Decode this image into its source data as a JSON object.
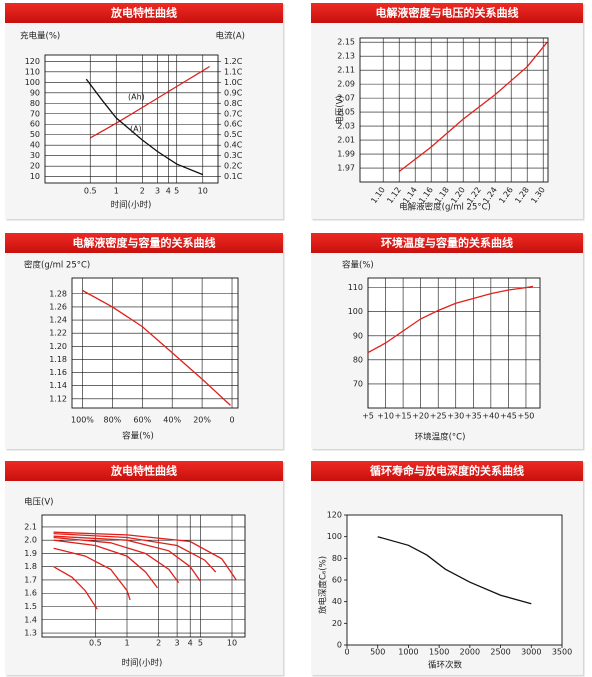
{
  "chart_data": [
    {
      "type": "line",
      "title": "放电特性曲线",
      "xlabel": "时间(小时)",
      "ylabel": "充电量(%)",
      "y2label": "电流(A)",
      "xscale": "log",
      "xlim": [
        0.15,
        15
      ],
      "xticks": [
        0.5,
        1,
        2,
        3,
        4,
        5,
        10
      ],
      "ylim": [
        4,
        126
      ],
      "yticks": [
        10,
        20,
        30,
        40,
        50,
        60,
        70,
        80,
        90,
        100,
        110,
        120
      ],
      "y2lim": [
        0.04,
        1.26
      ],
      "y2ticks": [
        {
          "value": 0.1,
          "label": "0.1C"
        },
        {
          "value": 0.2,
          "label": "0.2C"
        },
        {
          "value": 0.3,
          "label": "0.3C"
        },
        {
          "value": 0.4,
          "label": "0.4C"
        },
        {
          "value": 0.5,
          "label": "0.5C"
        },
        {
          "value": 0.6,
          "label": "0.6C"
        },
        {
          "value": 0.7,
          "label": "0.7C"
        },
        {
          "value": 0.8,
          "label": "0.8C"
        },
        {
          "value": 0.9,
          "label": "0.9C"
        },
        {
          "value": 1.0,
          "label": "1.0C"
        },
        {
          "value": 1.1,
          "label": "1.1C"
        },
        {
          "value": 1.2,
          "label": "1.2C"
        }
      ],
      "grid": true,
      "annotations": [
        "(Ah)",
        "(A)"
      ],
      "series": [
        {
          "color": "#e0201b",
          "x": [
            0.5,
            1,
            2,
            5,
            10,
            12
          ],
          "values": [
            47,
            61,
            76,
            96,
            111,
            115
          ]
        },
        {
          "color": "#111111",
          "axis": "y2",
          "x": [
            0.45,
            0.7,
            1,
            2,
            3,
            5,
            10
          ],
          "values": [
            1.03,
            0.82,
            0.66,
            0.45,
            0.34,
            0.22,
            0.12
          ]
        }
      ]
    },
    {
      "type": "line",
      "title": "电解液密度与电压的关系曲线",
      "xlabel": "电解液密度(g/ml 25°C)",
      "ylabel": "电压(V)",
      "xlim": [
        1.071,
        1.306
      ],
      "xticks": [
        {
          "value": 1.1,
          "label": "1.10"
        },
        1.12,
        1.14,
        1.16,
        1.18,
        {
          "value": 1.2,
          "label": "1.20"
        },
        1.22,
        1.24,
        1.26,
        1.28,
        {
          "value": 1.3,
          "label": "1.30"
        }
      ],
      "ylim": [
        1.95,
        2.156
      ],
      "yticks": [
        1.97,
        1.99,
        2.01,
        2.03,
        2.05,
        2.07,
        2.09,
        2.11,
        2.13,
        2.15
      ],
      "grid": true,
      "series": [
        {
          "color": "#e0201b",
          "x": [
            1.12,
            1.16,
            1.2,
            1.24,
            1.28,
            1.305
          ],
          "values": [
            1.965,
            2.0,
            2.04,
            2.075,
            2.115,
            2.15
          ]
        }
      ]
    },
    {
      "type": "line",
      "title": "电解液密度与容量的关系曲线",
      "xlabel": "容量(%)",
      "ylabel": "密度(g/ml 25°C)",
      "xlim": [
        107,
        -4
      ],
      "xticks": [
        {
          "value": 100,
          "label": "100%"
        },
        {
          "value": 80,
          "label": "80%"
        },
        {
          "value": 60,
          "label": "60%"
        },
        {
          "value": 40,
          "label": "40%"
        },
        {
          "value": 20,
          "label": "20%"
        },
        0
      ],
      "ylim": [
        1.106,
        1.304
      ],
      "yticks": [
        1.12,
        1.14,
        1.16,
        1.18,
        {
          "value": 1.2,
          "label": "1.20"
        },
        1.22,
        1.24,
        1.26,
        1.28
      ],
      "grid": true,
      "series": [
        {
          "color": "#e0201b",
          "x": [
            100,
            80,
            60,
            40,
            20,
            1
          ],
          "values": [
            1.285,
            1.26,
            1.23,
            1.19,
            1.15,
            1.11
          ]
        }
      ]
    },
    {
      "type": "line",
      "title": "环境温度与容量的关系曲线",
      "xlabel": "环境温度(°C)",
      "ylabel": "容量(%)",
      "xlim": [
        5,
        54
      ],
      "xticks": [
        {
          "value": 5,
          "label": "+5"
        },
        {
          "value": 10,
          "label": "+10"
        },
        {
          "value": 15,
          "label": "+15"
        },
        {
          "value": 20,
          "label": "+20"
        },
        {
          "value": 25,
          "label": "+25"
        },
        {
          "value": 30,
          "label": "+30"
        },
        {
          "value": 35,
          "label": "+35"
        },
        {
          "value": 40,
          "label": "+40"
        },
        {
          "value": 45,
          "label": "+45"
        },
        {
          "value": 50,
          "label": "+50"
        }
      ],
      "ylim": [
        60,
        114
      ],
      "yticks": [
        70,
        80,
        90,
        100,
        110
      ],
      "grid": true,
      "series": [
        {
          "color": "#e0201b",
          "x": [
            5,
            10,
            15,
            20,
            25,
            30,
            35,
            40,
            45,
            50,
            52
          ],
          "values": [
            83,
            87,
            92,
            97,
            100.5,
            103.5,
            105.5,
            107.5,
            109,
            110,
            110.5
          ]
        }
      ]
    },
    {
      "type": "line",
      "title": "放电特性曲线",
      "xlabel": "时间(小时)",
      "ylabel": "电压(V)",
      "xscale": "log",
      "xlim": [
        0.155,
        13.3
      ],
      "xticks": [
        0.5,
        1,
        2,
        3,
        4,
        5,
        10
      ],
      "ylim": [
        1.27,
        2.19
      ],
      "yticks": [
        1.3,
        1.4,
        1.5,
        1.6,
        1.7,
        1.8,
        1.9,
        {
          "value": 2.0,
          "label": "2.0"
        },
        2.1
      ],
      "grid": true,
      "series": [
        {
          "color": "#e0201b",
          "x": [
            0.2,
            0.3,
            0.4,
            0.52
          ],
          "values": [
            1.8,
            1.72,
            1.62,
            1.48
          ]
        },
        {
          "color": "#e0201b",
          "x": [
            0.2,
            0.4,
            0.7,
            1.0,
            1.07
          ],
          "values": [
            1.94,
            1.88,
            1.78,
            1.62,
            1.55
          ]
        },
        {
          "color": "#e0201b",
          "x": [
            0.2,
            0.5,
            1,
            1.5,
            1.95
          ],
          "values": [
            2.0,
            1.96,
            1.88,
            1.76,
            1.64
          ]
        },
        {
          "color": "#e0201b",
          "x": [
            0.2,
            0.7,
            1.5,
            2.5,
            3.1
          ],
          "values": [
            2.02,
            1.98,
            1.9,
            1.78,
            1.68
          ]
        },
        {
          "color": "#e0201b",
          "x": [
            0.2,
            1,
            2.5,
            4,
            5
          ],
          "values": [
            2.03,
            2.0,
            1.92,
            1.8,
            1.69
          ]
        },
        {
          "color": "#e0201b",
          "x": [
            0.2,
            1,
            3,
            5.5,
            7
          ],
          "values": [
            2.05,
            2.02,
            1.96,
            1.85,
            1.76
          ]
        },
        {
          "color": "#e0201b",
          "x": [
            0.2,
            1,
            4,
            8,
            11
          ],
          "values": [
            2.06,
            2.04,
            1.99,
            1.86,
            1.7
          ]
        }
      ]
    },
    {
      "type": "line",
      "title": "循环寿命与放电深度的关系曲线",
      "xlabel": "循环次数",
      "ylabel": "放电深度C₆(%)",
      "xlim": [
        0,
        3500
      ],
      "xticks": [
        0,
        500,
        1000,
        1500,
        2000,
        2500,
        3000,
        3500
      ],
      "ylim": [
        0,
        120
      ],
      "yticks": [
        0,
        20,
        40,
        60,
        80,
        100,
        120
      ],
      "grid": false,
      "series": [
        {
          "color": "#111111",
          "x": [
            500,
            1000,
            1300,
            1600,
            2000,
            2500,
            3000
          ],
          "values": [
            100,
            92,
            83,
            70,
            58,
            46,
            38
          ]
        }
      ]
    }
  ]
}
